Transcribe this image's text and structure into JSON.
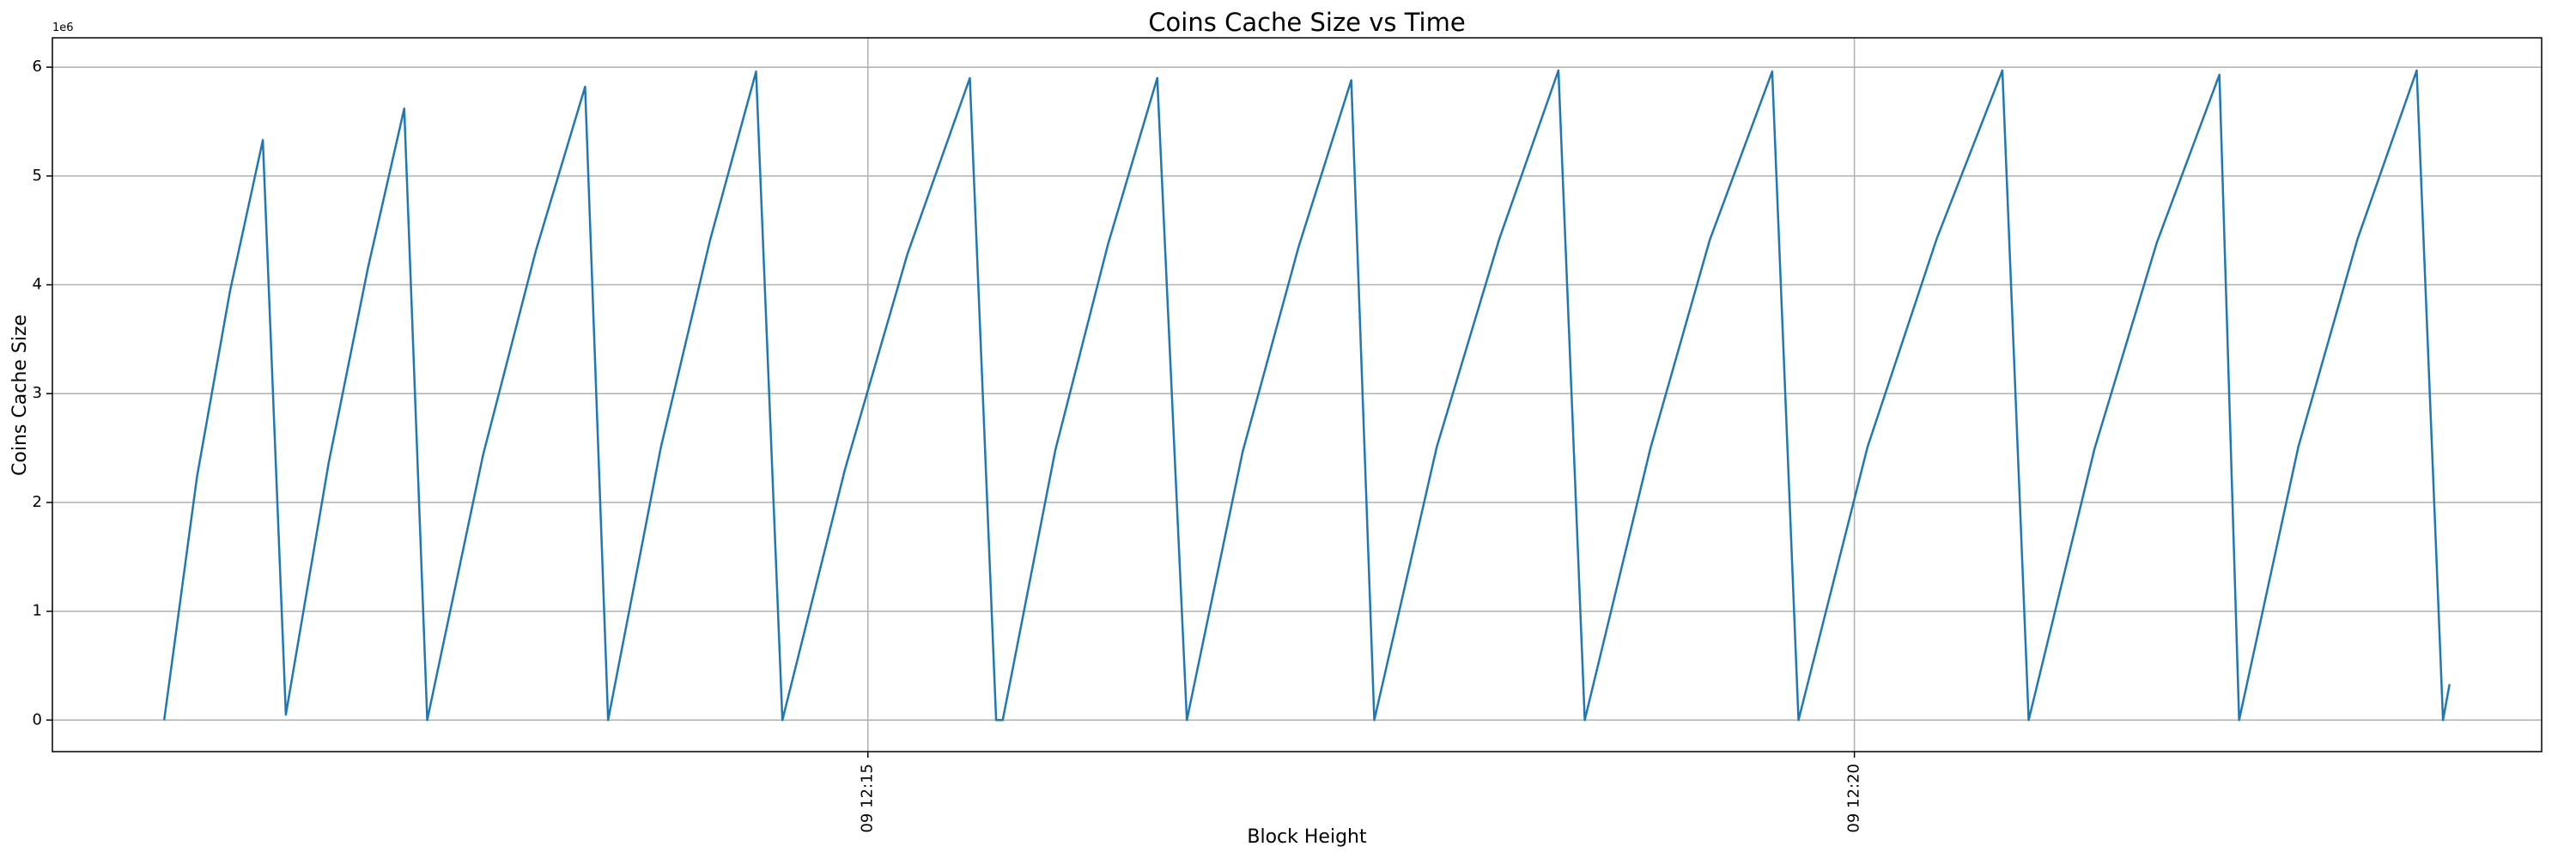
{
  "chart_data": {
    "type": "line",
    "title": "Coins Cache Size vs Time",
    "xlabel": "Block Height",
    "ylabel": "Coins Cache Size",
    "y_offset_label": "1e6",
    "color": "#1f77b4",
    "grid": true,
    "x": [
      "09 12:11:26",
      "09 12:11:36",
      "09 12:11:46",
      "09 12:11:56",
      "09 12:12:03",
      "09 12:12:16",
      "09 12:12:28",
      "09 12:12:39",
      "09 12:12:46",
      "09 12:13:03",
      "09 12:13:19",
      "09 12:13:34",
      "09 12:13:41",
      "09 12:13:57",
      "09 12:14:12",
      "09 12:14:26",
      "09 12:14:34",
      "09 12:14:53",
      "09 12:15:12",
      "09 12:15:31",
      "09 12:15:39",
      "09 12:15:41",
      "09 12:15:57",
      "09 12:16:13",
      "09 12:16:28",
      "09 12:16:37",
      "09 12:16:54",
      "09 12:17:11",
      "09 12:17:27",
      "09 12:17:34",
      "09 12:17:53",
      "09 12:18:12",
      "09 12:18:30",
      "09 12:18:38",
      "09 12:18:58",
      "09 12:19:16",
      "09 12:19:35",
      "09 12:19:43",
      "09 12:20:04",
      "09 12:20:25",
      "09 12:20:45",
      "09 12:20:53",
      "09 12:21:13",
      "09 12:21:32",
      "09 12:21:51",
      "09 12:21:57",
      "09 12:22:15",
      "09 12:22:33",
      "09 12:22:51",
      "09 12:22:59",
      "09 12:23:01"
    ],
    "values": [
      0,
      2240000,
      3940000,
      5330000,
      50000,
      2360000,
      4160000,
      5620000,
      0,
      2440000,
      4310000,
      5820000,
      0,
      2500000,
      4410000,
      5960000,
      0,
      2300000,
      4280000,
      5900000,
      0,
      0,
      2480000,
      4370000,
      5900000,
      0,
      2470000,
      4350000,
      5880000,
      0,
      2510000,
      4420000,
      5970000,
      0,
      2500000,
      4410000,
      5960000,
      0,
      2510000,
      4420000,
      5970000,
      0,
      2490000,
      4390000,
      5930000,
      0,
      2510000,
      4420000,
      5970000,
      0,
      330000
    ],
    "xlim": [
      "09 12:10:52",
      "09 12:23:29"
    ],
    "xticks": [
      "09 12:15",
      "09 12:20"
    ],
    "ylim": [
      -290000,
      6270000
    ],
    "yticks": [
      {
        "value": 0,
        "label": "0"
      },
      {
        "value": 1000000,
        "label": "1"
      },
      {
        "value": 2000000,
        "label": "2"
      },
      {
        "value": 3000000,
        "label": "3"
      },
      {
        "value": 4000000,
        "label": "4"
      },
      {
        "value": 5000000,
        "label": "5"
      },
      {
        "value": 6000000,
        "label": "6"
      }
    ]
  }
}
